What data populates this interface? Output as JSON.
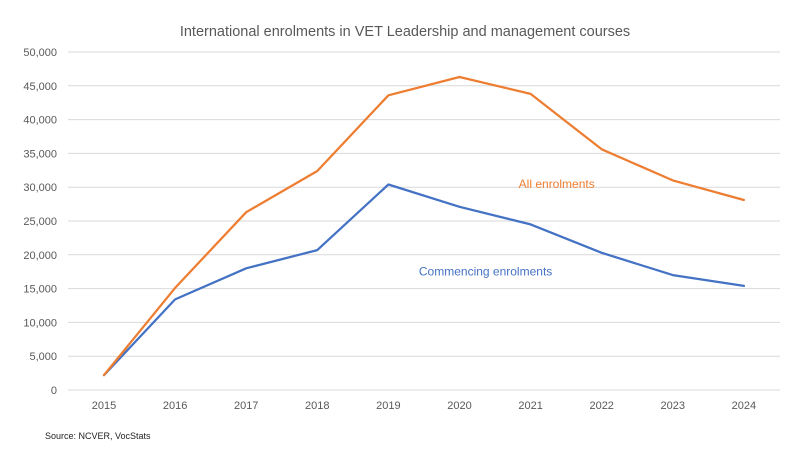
{
  "chart_data": {
    "type": "line",
    "title": "International enrolments in VET Leadership and management courses",
    "xlabel": "",
    "ylabel": "",
    "categories": [
      "2015",
      "2016",
      "2017",
      "2018",
      "2019",
      "2020",
      "2021",
      "2022",
      "2023",
      "2024"
    ],
    "series": [
      {
        "name": "All enrolments",
        "color": "#ED7D31",
        "values": [
          2200,
          15100,
          26300,
          32400,
          43600,
          46300,
          43800,
          35600,
          31000,
          28100
        ]
      },
      {
        "name": "Commencing enrolments",
        "color": "#4472C4",
        "values": [
          2200,
          13400,
          18000,
          20700,
          30400,
          27100,
          24500,
          20300,
          17000,
          15400
        ]
      }
    ],
    "ylim": [
      0,
      50000
    ],
    "yticks": [
      0,
      5000,
      10000,
      15000,
      20000,
      25000,
      30000,
      35000,
      40000,
      45000,
      50000
    ],
    "ytick_labels": [
      "0",
      "5,000",
      "10,000",
      "15,000",
      "20,000",
      "25,000",
      "30,000",
      "35,000",
      "40,000",
      "45,000",
      "50,000"
    ],
    "grid": true,
    "legend": "inline labels",
    "annotations": [
      {
        "text": "All enrolments",
        "series": 0,
        "near": "2022",
        "at_value": 30500
      },
      {
        "text": "Commencing enrolments",
        "series": 1,
        "near": "2021",
        "at_value": 17500
      }
    ],
    "source": "Source: NCVER, VocStats"
  }
}
